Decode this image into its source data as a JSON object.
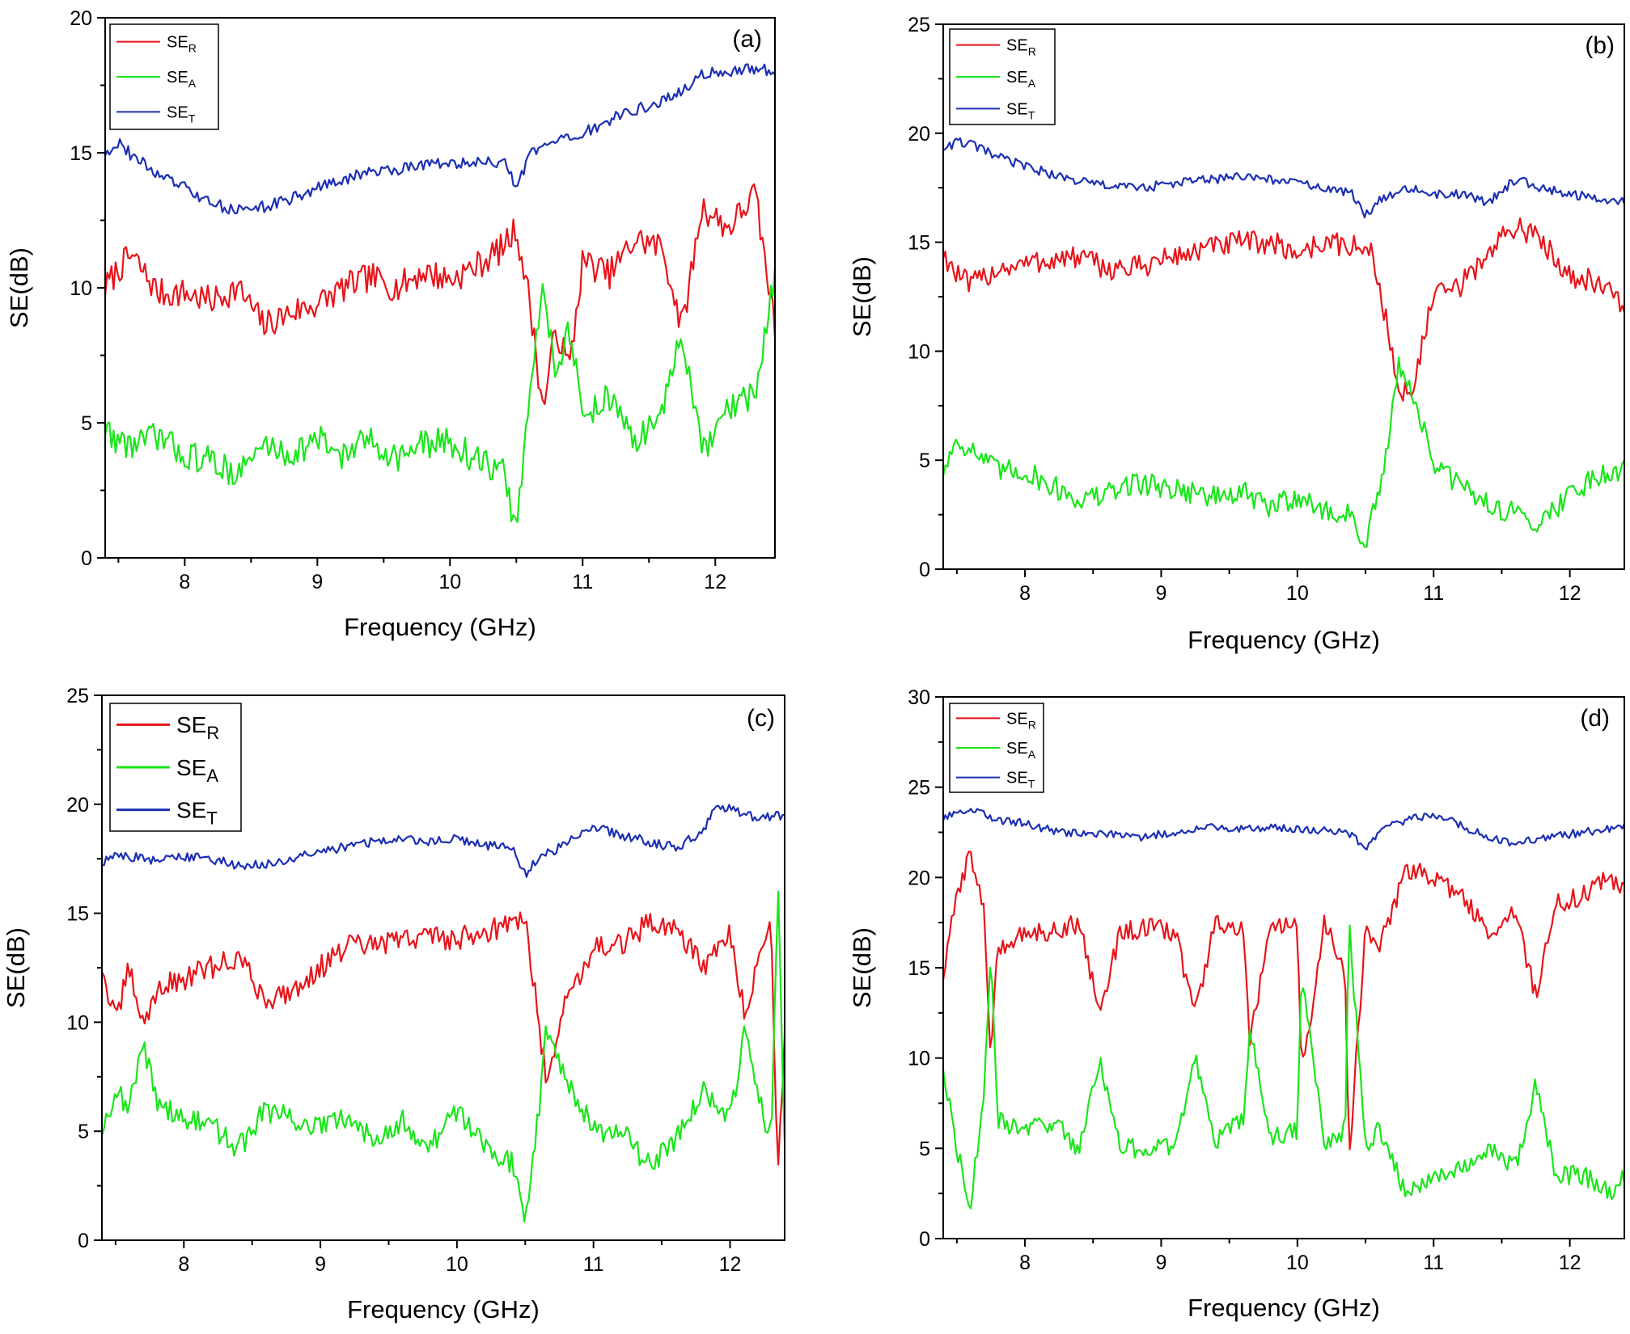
{
  "colors": {
    "se_r": "#e8141a",
    "se_a": "#19e619",
    "se_t": "#1b2fb4",
    "frame": "#000000"
  },
  "chart_data": [
    {
      "type": "line",
      "panel_label": "(a)",
      "xlabel": "Frequency (GHz)",
      "ylabel": "SE(dB)",
      "xlim": [
        7.4,
        12.45
      ],
      "ylim": [
        0,
        20
      ],
      "x_ticks": [
        8,
        9,
        10,
        11,
        12
      ],
      "y_ticks": [
        0,
        5,
        10,
        15,
        20
      ],
      "legend": {
        "position": "top-left",
        "entries": [
          {
            "base": "SE",
            "sub": "R"
          },
          {
            "base": "SE",
            "sub": "A"
          },
          {
            "base": "SE",
            "sub": "T"
          }
        ]
      },
      "series": [
        {
          "name": "SE_R",
          "color_key": "se_r",
          "x": [
            7.4,
            7.5,
            7.6,
            7.8,
            8.0,
            8.2,
            8.4,
            8.6,
            8.8,
            9.0,
            9.2,
            9.4,
            9.6,
            9.8,
            10.0,
            10.2,
            10.4,
            10.5,
            10.6,
            10.7,
            10.8,
            10.9,
            11.0,
            11.2,
            11.4,
            11.6,
            11.75,
            11.9,
            12.1,
            12.3,
            12.45
          ],
          "values": [
            10.0,
            10.7,
            11.2,
            9.8,
            9.8,
            9.5,
            10.0,
            8.6,
            9.1,
            9.4,
            10.0,
            10.4,
            10.0,
            10.6,
            10.3,
            10.8,
            11.5,
            12.2,
            9.5,
            5.5,
            8.5,
            7.0,
            11.0,
            10.5,
            11.8,
            11.5,
            8.5,
            13.0,
            12.2,
            13.5,
            8.5
          ]
        },
        {
          "name": "SE_A",
          "color_key": "se_a",
          "x": [
            7.4,
            7.5,
            7.6,
            7.8,
            8.0,
            8.2,
            8.4,
            8.6,
            8.8,
            9.0,
            9.2,
            9.4,
            9.6,
            9.8,
            10.0,
            10.2,
            10.4,
            10.5,
            10.6,
            10.7,
            10.8,
            10.9,
            11.0,
            11.2,
            11.4,
            11.6,
            11.75,
            11.9,
            12.1,
            12.3,
            12.45
          ],
          "values": [
            4.8,
            4.3,
            4.2,
            4.5,
            3.8,
            3.6,
            3.1,
            4.2,
            3.8,
            4.4,
            3.8,
            4.4,
            3.7,
            4.2,
            4.3,
            3.6,
            3.2,
            1.0,
            6.0,
            10.0,
            7.0,
            8.5,
            5.2,
            6.0,
            4.2,
            5.5,
            8.3,
            3.8,
            5.5,
            6.0,
            10.5
          ]
        },
        {
          "name": "SE_T",
          "color_key": "se_t",
          "x": [
            7.4,
            7.5,
            7.6,
            7.8,
            8.0,
            8.2,
            8.4,
            8.6,
            8.8,
            9.0,
            9.2,
            9.4,
            9.6,
            9.8,
            10.0,
            10.2,
            10.4,
            10.5,
            10.6,
            10.7,
            10.8,
            10.9,
            11.0,
            11.2,
            11.4,
            11.6,
            11.75,
            11.9,
            12.1,
            12.3,
            12.45
          ],
          "values": [
            15.0,
            15.4,
            14.9,
            14.2,
            13.7,
            13.1,
            12.9,
            13.0,
            13.3,
            13.7,
            14.0,
            14.3,
            14.4,
            14.6,
            14.6,
            14.6,
            14.7,
            13.7,
            14.9,
            15.2,
            15.4,
            15.5,
            15.7,
            16.2,
            16.6,
            16.9,
            17.3,
            17.9,
            18.0,
            18.1,
            18.0
          ]
        }
      ]
    },
    {
      "type": "line",
      "panel_label": "(b)",
      "xlabel": "Frequency (GHz)",
      "ylabel": "SE(dB)",
      "xlim": [
        7.4,
        12.4
      ],
      "ylim": [
        0,
        25
      ],
      "x_ticks": [
        8,
        9,
        10,
        11,
        12
      ],
      "y_ticks": [
        0,
        5,
        10,
        15,
        20,
        25
      ],
      "legend": {
        "position": "top-left",
        "entries": [
          {
            "base": "SE",
            "sub": "R"
          },
          {
            "base": "SE",
            "sub": "A"
          },
          {
            "base": "SE",
            "sub": "T"
          }
        ]
      },
      "series": [
        {
          "name": "SE_R",
          "color_key": "se_r",
          "x": [
            7.4,
            7.5,
            7.6,
            7.8,
            8.0,
            8.2,
            8.4,
            8.6,
            8.8,
            9.0,
            9.2,
            9.4,
            9.6,
            9.8,
            10.0,
            10.2,
            10.4,
            10.55,
            10.65,
            10.75,
            10.85,
            11.0,
            11.2,
            11.4,
            11.6,
            11.8,
            12.0,
            12.2,
            12.4
          ],
          "values": [
            14.5,
            13.5,
            13.0,
            13.8,
            14.0,
            14.2,
            14.3,
            13.8,
            13.8,
            14.2,
            14.5,
            14.8,
            15.0,
            15.0,
            14.5,
            15.0,
            14.8,
            14.5,
            11.5,
            7.8,
            8.5,
            12.5,
            13.0,
            14.5,
            15.8,
            15.0,
            13.5,
            13.2,
            12.0
          ]
        },
        {
          "name": "SE_A",
          "color_key": "se_a",
          "x": [
            7.4,
            7.5,
            7.6,
            7.8,
            8.0,
            8.2,
            8.4,
            8.6,
            8.8,
            9.0,
            9.2,
            9.4,
            9.6,
            9.8,
            10.0,
            10.2,
            10.4,
            10.5,
            10.65,
            10.75,
            10.85,
            11.0,
            11.2,
            11.4,
            11.6,
            11.8,
            12.0,
            12.2,
            12.4
          ],
          "values": [
            4.5,
            6.0,
            5.5,
            4.5,
            4.5,
            3.8,
            3.2,
            3.4,
            4.0,
            3.8,
            3.6,
            3.3,
            3.5,
            2.8,
            3.4,
            2.6,
            2.5,
            1.0,
            5.0,
            9.5,
            8.0,
            4.8,
            3.8,
            3.0,
            2.5,
            2.2,
            3.5,
            4.3,
            4.6
          ]
        },
        {
          "name": "SE_T",
          "color_key": "se_t",
          "x": [
            7.4,
            7.5,
            7.6,
            7.8,
            8.0,
            8.2,
            8.4,
            8.6,
            8.8,
            9.0,
            9.2,
            9.4,
            9.6,
            9.8,
            10.0,
            10.2,
            10.4,
            10.5,
            10.6,
            10.8,
            11.0,
            11.2,
            11.4,
            11.6,
            11.8,
            12.0,
            12.2,
            12.4
          ],
          "values": [
            19.3,
            19.6,
            19.5,
            18.9,
            18.5,
            18.1,
            17.8,
            17.6,
            17.5,
            17.6,
            17.8,
            17.9,
            18.0,
            17.9,
            17.7,
            17.5,
            17.2,
            16.2,
            17.0,
            17.5,
            17.2,
            17.2,
            16.8,
            17.9,
            17.5,
            17.2,
            17.0,
            16.8
          ]
        }
      ]
    },
    {
      "type": "line",
      "panel_label": "(c)",
      "xlabel": "Frequency (GHz)",
      "ylabel": "SE(dB)",
      "xlim": [
        7.4,
        12.4
      ],
      "ylim": [
        0,
        25
      ],
      "x_ticks": [
        8,
        9,
        10,
        11,
        12
      ],
      "y_ticks": [
        0,
        5,
        10,
        15,
        20,
        25
      ],
      "legend": {
        "position": "top-left",
        "entries": [
          {
            "base": "SE",
            "sub": "R"
          },
          {
            "base": "SE",
            "sub": "A"
          },
          {
            "base": "SE",
            "sub": "T"
          }
        ]
      },
      "series": [
        {
          "name": "SE_R",
          "color_key": "se_r",
          "x": [
            7.4,
            7.5,
            7.6,
            7.7,
            7.8,
            8.0,
            8.2,
            8.4,
            8.6,
            8.8,
            9.0,
            9.2,
            9.4,
            9.6,
            9.8,
            10.0,
            10.2,
            10.4,
            10.5,
            10.6,
            10.65,
            10.8,
            11.0,
            11.2,
            11.4,
            11.6,
            11.8,
            12.0,
            12.1,
            12.3,
            12.35,
            12.4
          ],
          "values": [
            12.5,
            10.0,
            12.5,
            9.8,
            11.5,
            12.0,
            12.5,
            13.0,
            11.0,
            11.5,
            12.5,
            13.5,
            13.5,
            13.8,
            14.0,
            13.8,
            14.2,
            14.5,
            14.8,
            10.0,
            7.5,
            11.0,
            13.5,
            13.5,
            14.5,
            14.5,
            12.5,
            14.0,
            10.5,
            14.5,
            3.0,
            9.5
          ]
        },
        {
          "name": "SE_A",
          "color_key": "se_a",
          "x": [
            7.4,
            7.5,
            7.6,
            7.7,
            7.8,
            8.0,
            8.2,
            8.4,
            8.6,
            8.8,
            9.0,
            9.2,
            9.4,
            9.6,
            9.8,
            10.0,
            10.2,
            10.4,
            10.5,
            10.6,
            10.65,
            10.8,
            11.0,
            11.2,
            11.4,
            11.6,
            11.8,
            12.0,
            12.1,
            12.3,
            12.35,
            12.4
          ],
          "values": [
            5.0,
            7.0,
            6.0,
            9.0,
            6.5,
            5.5,
            5.3,
            4.2,
            6.0,
            5.5,
            5.2,
            5.5,
            4.8,
            5.5,
            4.2,
            6.0,
            4.5,
            3.5,
            1.2,
            6.0,
            10.0,
            7.5,
            5.0,
            5.0,
            3.5,
            4.5,
            7.0,
            5.5,
            9.5,
            4.5,
            16.5,
            4.0
          ]
        },
        {
          "name": "SE_T",
          "color_key": "se_t",
          "x": [
            7.4,
            7.5,
            7.6,
            7.8,
            8.0,
            8.2,
            8.4,
            8.6,
            8.8,
            9.0,
            9.2,
            9.4,
            9.6,
            9.8,
            10.0,
            10.2,
            10.4,
            10.5,
            10.6,
            10.8,
            11.0,
            11.2,
            11.4,
            11.6,
            11.8,
            11.9,
            12.0,
            12.2,
            12.4
          ],
          "values": [
            17.3,
            17.7,
            17.6,
            17.4,
            17.6,
            17.5,
            17.2,
            17.2,
            17.5,
            17.8,
            18.1,
            18.3,
            18.4,
            18.3,
            18.4,
            18.1,
            18.0,
            16.8,
            17.5,
            18.2,
            19.0,
            18.6,
            18.3,
            18.0,
            18.7,
            19.9,
            19.8,
            19.3,
            19.5
          ]
        }
      ]
    },
    {
      "type": "line",
      "panel_label": "(d)",
      "xlabel": "Frequency (GHz)",
      "ylabel": "SE(dB)",
      "xlim": [
        7.4,
        12.4
      ],
      "ylim": [
        0,
        30
      ],
      "x_ticks": [
        8,
        9,
        10,
        11,
        12
      ],
      "y_ticks": [
        0,
        5,
        10,
        15,
        20,
        25,
        30
      ],
      "legend": {
        "position": "top-left",
        "entries": [
          {
            "base": "SE",
            "sub": "R"
          },
          {
            "base": "SE",
            "sub": "A"
          },
          {
            "base": "SE",
            "sub": "T"
          }
        ]
      },
      "series": [
        {
          "name": "SE_R",
          "color_key": "se_r",
          "x": [
            7.4,
            7.5,
            7.6,
            7.7,
            7.75,
            7.8,
            8.0,
            8.2,
            8.4,
            8.55,
            8.7,
            8.9,
            9.1,
            9.25,
            9.4,
            9.6,
            9.65,
            9.8,
            10.0,
            10.03,
            10.2,
            10.35,
            10.38,
            10.5,
            10.6,
            10.8,
            11.0,
            11.2,
            11.4,
            11.6,
            11.75,
            11.9,
            12.1,
            12.3,
            12.4
          ],
          "values": [
            14.5,
            19.0,
            21.5,
            18.0,
            10.0,
            16.0,
            17.0,
            17.0,
            17.5,
            12.5,
            17.0,
            17.2,
            17.0,
            12.5,
            17.5,
            17.0,
            11.0,
            17.0,
            17.5,
            9.0,
            17.5,
            15.0,
            4.5,
            17.0,
            16.0,
            20.5,
            20.0,
            19.0,
            17.0,
            18.0,
            13.5,
            18.5,
            19.0,
            20.0,
            19.5
          ]
        },
        {
          "name": "SE_A",
          "color_key": "se_a",
          "x": [
            7.4,
            7.5,
            7.6,
            7.7,
            7.75,
            7.8,
            8.0,
            8.2,
            8.4,
            8.55,
            8.7,
            8.9,
            9.1,
            9.25,
            9.4,
            9.6,
            9.65,
            9.8,
            10.0,
            10.03,
            10.2,
            10.35,
            10.38,
            10.5,
            10.6,
            10.8,
            11.0,
            11.2,
            11.4,
            11.6,
            11.75,
            11.9,
            12.1,
            12.3,
            12.4
          ],
          "values": [
            9.5,
            5.0,
            2.0,
            8.0,
            15.5,
            6.5,
            6.0,
            6.5,
            5.0,
            10.0,
            5.0,
            5.0,
            5.0,
            10.0,
            5.5,
            6.5,
            11.5,
            5.5,
            6.0,
            15.0,
            5.0,
            6.0,
            17.5,
            5.0,
            6.0,
            2.5,
            3.5,
            4.0,
            5.0,
            4.0,
            8.5,
            3.5,
            3.5,
            2.5,
            3.5
          ]
        },
        {
          "name": "SE_T",
          "color_key": "se_t",
          "x": [
            7.4,
            7.5,
            7.6,
            7.8,
            8.0,
            8.2,
            8.4,
            8.6,
            8.8,
            9.0,
            9.2,
            9.4,
            9.6,
            9.8,
            10.0,
            10.2,
            10.4,
            10.5,
            10.6,
            10.8,
            11.0,
            11.2,
            11.4,
            11.6,
            11.8,
            12.0,
            12.2,
            12.4
          ],
          "values": [
            23.2,
            23.6,
            23.8,
            23.2,
            23.0,
            22.6,
            22.4,
            22.4,
            22.2,
            22.4,
            22.6,
            22.8,
            22.7,
            22.8,
            22.7,
            22.6,
            22.4,
            21.6,
            22.6,
            23.2,
            23.5,
            22.9,
            22.2,
            21.9,
            22.2,
            22.4,
            22.6,
            22.9
          ]
        }
      ]
    }
  ]
}
